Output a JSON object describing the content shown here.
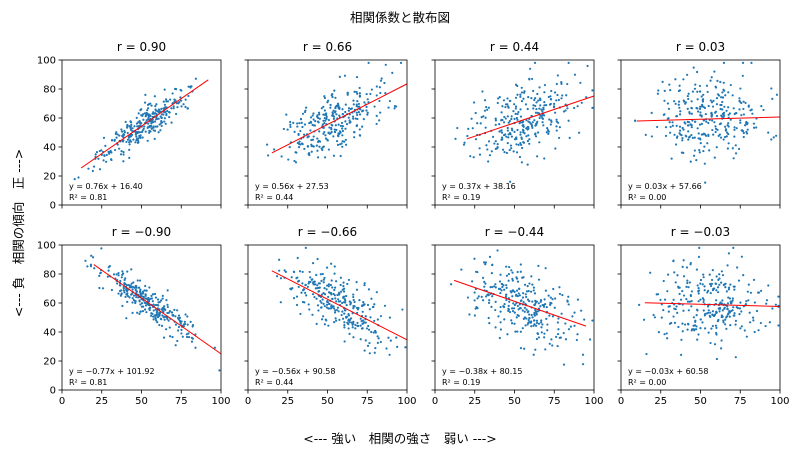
{
  "figure": {
    "title": "相関係数と散布図",
    "xlabel": "<---  強い　相関の強さ　弱い  --->",
    "ylabel": "<---  負　相関の傾向　正  --->"
  },
  "chart_data": [
    {
      "type": "scatter",
      "row": 0,
      "col": 0,
      "title": "r = 0.90",
      "r": 0.9,
      "slope": 0.76,
      "intercept": 16.4,
      "fit_x": [
        12,
        92
      ],
      "equation": "y = 0.76x + 16.40",
      "r2": "R² = 0.81",
      "n_points": 300,
      "x_center": 52,
      "x_spread": 15,
      "xlim": [
        0,
        100
      ],
      "ylim": [
        0,
        100
      ],
      "xticks": [
        0,
        25,
        50,
        75,
        100
      ],
      "yticks": [
        0,
        20,
        40,
        60,
        80,
        100
      ],
      "point_color": "#1f77b4",
      "line_color": "#ff0000"
    },
    {
      "type": "scatter",
      "row": 0,
      "col": 1,
      "title": "r = 0.66",
      "r": 0.66,
      "slope": 0.56,
      "intercept": 27.53,
      "fit_x": [
        15,
        100
      ],
      "equation": "y = 0.56x + 27.53",
      "r2": "R² = 0.44",
      "n_points": 300,
      "x_center": 55,
      "x_spread": 16,
      "xlim": [
        0,
        100
      ],
      "ylim": [
        0,
        100
      ],
      "xticks": [
        0,
        25,
        50,
        75,
        100
      ],
      "yticks": [
        0,
        20,
        40,
        60,
        80,
        100
      ],
      "point_color": "#1f77b4",
      "line_color": "#ff0000"
    },
    {
      "type": "scatter",
      "row": 0,
      "col": 2,
      "title": "r = 0.44",
      "r": 0.44,
      "slope": 0.37,
      "intercept": 38.16,
      "fit_x": [
        20,
        100
      ],
      "equation": "y = 0.37x + 38.16",
      "r2": "R² = 0.19",
      "n_points": 300,
      "x_center": 55,
      "x_spread": 16,
      "xlim": [
        0,
        100
      ],
      "ylim": [
        0,
        100
      ],
      "xticks": [
        0,
        25,
        50,
        75,
        100
      ],
      "yticks": [
        0,
        20,
        40,
        60,
        80,
        100
      ],
      "point_color": "#1f77b4",
      "line_color": "#ff0000"
    },
    {
      "type": "scatter",
      "row": 0,
      "col": 3,
      "title": "r = 0.03",
      "r": 0.03,
      "slope": 0.03,
      "intercept": 57.66,
      "fit_x": [
        10,
        100
      ],
      "equation": "y = 0.03x + 57.66",
      "r2": "R² = 0.00",
      "n_points": 300,
      "x_center": 55,
      "x_spread": 17,
      "xlim": [
        0,
        100
      ],
      "ylim": [
        0,
        100
      ],
      "xticks": [
        0,
        25,
        50,
        75,
        100
      ],
      "yticks": [
        0,
        20,
        40,
        60,
        80,
        100
      ],
      "point_color": "#1f77b4",
      "line_color": "#ff0000"
    },
    {
      "type": "scatter",
      "row": 1,
      "col": 0,
      "title": "r = −0.90",
      "r": -0.9,
      "slope": -0.77,
      "intercept": 101.92,
      "fit_x": [
        20,
        100
      ],
      "equation": "y = −0.77x + 101.92",
      "r2": "R² = 0.81",
      "n_points": 300,
      "x_center": 55,
      "x_spread": 15,
      "xlim": [
        0,
        100
      ],
      "ylim": [
        0,
        100
      ],
      "xticks": [
        0,
        25,
        50,
        75,
        100
      ],
      "yticks": [
        0,
        20,
        40,
        60,
        80,
        100
      ],
      "point_color": "#1f77b4",
      "line_color": "#ff0000"
    },
    {
      "type": "scatter",
      "row": 1,
      "col": 1,
      "title": "r = −0.66",
      "r": -0.66,
      "slope": -0.56,
      "intercept": 90.58,
      "fit_x": [
        15,
        100
      ],
      "equation": "y = −0.56x + 90.58",
      "r2": "R² = 0.44",
      "n_points": 300,
      "x_center": 55,
      "x_spread": 16,
      "xlim": [
        0,
        100
      ],
      "ylim": [
        0,
        100
      ],
      "xticks": [
        0,
        25,
        50,
        75,
        100
      ],
      "yticks": [
        0,
        20,
        40,
        60,
        80,
        100
      ],
      "point_color": "#1f77b4",
      "line_color": "#ff0000"
    },
    {
      "type": "scatter",
      "row": 1,
      "col": 2,
      "title": "r = −0.44",
      "r": -0.44,
      "slope": -0.38,
      "intercept": 80.15,
      "fit_x": [
        12,
        95
      ],
      "equation": "y = −0.38x + 80.15",
      "r2": "R² = 0.19",
      "n_points": 300,
      "x_center": 55,
      "x_spread": 16,
      "xlim": [
        0,
        100
      ],
      "ylim": [
        0,
        100
      ],
      "xticks": [
        0,
        25,
        50,
        75,
        100
      ],
      "yticks": [
        0,
        20,
        40,
        60,
        80,
        100
      ],
      "point_color": "#1f77b4",
      "line_color": "#ff0000"
    },
    {
      "type": "scatter",
      "row": 1,
      "col": 3,
      "title": "r = −0.03",
      "r": -0.03,
      "slope": -0.03,
      "intercept": 60.58,
      "fit_x": [
        15,
        100
      ],
      "equation": "y = −0.03x + 60.58",
      "r2": "R² = 0.00",
      "n_points": 300,
      "x_center": 57,
      "x_spread": 17,
      "xlim": [
        0,
        100
      ],
      "ylim": [
        0,
        100
      ],
      "xticks": [
        0,
        25,
        50,
        75,
        100
      ],
      "yticks": [
        0,
        20,
        40,
        60,
        80,
        100
      ],
      "point_color": "#1f77b4",
      "line_color": "#ff0000"
    }
  ]
}
